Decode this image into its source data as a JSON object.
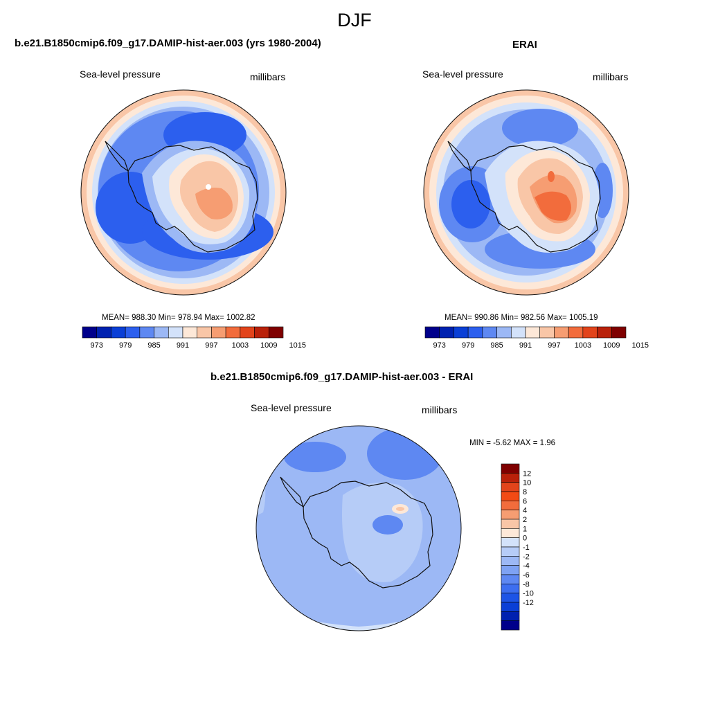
{
  "figure": {
    "season_title": "DJF"
  },
  "panels": {
    "model": {
      "title": "b.e21.B1850cmip6.f09_g17.DAMIP-hist-aer.003 (yrs 1980-2004)",
      "variable": "Sea-level pressure",
      "units": "millibars",
      "stats": "MEAN= 988.30  Min= 978.94  Max= 1002.82"
    },
    "obs": {
      "title": "ERAI",
      "variable": "Sea-level pressure",
      "units": "millibars",
      "stats": "MEAN= 990.86  Min= 982.56  Max= 1005.19"
    },
    "diff": {
      "title": "b.e21.B1850cmip6.f09_g17.DAMIP-hist-aer.003 - ERAI",
      "variable": "Sea-level pressure",
      "units": "millibars",
      "stats": "MIN =  -5.62 MAX =   1.96"
    }
  },
  "colorbars": {
    "horizontal": {
      "colors": [
        "#00008b",
        "#0021b0",
        "#0a3fd6",
        "#2c5fee",
        "#5e88f2",
        "#9cb8f5",
        "#d3e2fa",
        "#fde8d8",
        "#f9c6a7",
        "#f69d72",
        "#f26c3c",
        "#e2441b",
        "#b9210a",
        "#7f0000"
      ],
      "labels": [
        "973",
        "979",
        "985",
        "991",
        "997",
        "1003",
        "1009",
        "1015"
      ]
    },
    "vertical": {
      "colors": [
        "#7f0000",
        "#b9210a",
        "#e2441b",
        "#f24a14",
        "#f26c3c",
        "#f69d72",
        "#f9c6a7",
        "#fde8d8",
        "#d3e2fa",
        "#b6ccf7",
        "#9cb8f5",
        "#7ea2f3",
        "#5e88f2",
        "#3d6ef0",
        "#1d54e6",
        "#0a3fd6",
        "#0021b0",
        "#00008b"
      ],
      "labels": [
        "12",
        "10",
        "8",
        "6",
        "4",
        "2",
        "1",
        "0",
        "-1",
        "-2",
        "-4",
        "-6",
        "-8",
        "-10",
        "-12"
      ]
    }
  },
  "chart_data": [
    {
      "type": "heatmap",
      "title": "b.e21.B1850cmip6.f09_g17.DAMIP-hist-aer.003 (yrs 1980-2004)",
      "variable": "Sea-level pressure",
      "units": "millibars",
      "projection": "south polar stereographic",
      "mean": 988.3,
      "min": 978.94,
      "max": 1002.82,
      "contour_levels": [
        973,
        976,
        979,
        982,
        985,
        988,
        991,
        994,
        997,
        1000,
        1003,
        1006,
        1009,
        1012,
        1015
      ]
    },
    {
      "type": "heatmap",
      "title": "ERAI",
      "variable": "Sea-level pressure",
      "units": "millibars",
      "projection": "south polar stereographic",
      "mean": 990.86,
      "min": 982.56,
      "max": 1005.19,
      "contour_levels": [
        973,
        976,
        979,
        982,
        985,
        988,
        991,
        994,
        997,
        1000,
        1003,
        1006,
        1009,
        1012,
        1015
      ]
    },
    {
      "type": "heatmap",
      "title": "b.e21.B1850cmip6.f09_g17.DAMIP-hist-aer.003 - ERAI",
      "variable": "Sea-level pressure",
      "units": "millibars",
      "projection": "south polar stereographic",
      "min": -5.62,
      "max": 1.96,
      "contour_levels": [
        -12,
        -10,
        -8,
        -6,
        -4,
        -2,
        -1,
        0,
        1,
        2,
        4,
        6,
        8,
        10,
        12
      ]
    }
  ]
}
